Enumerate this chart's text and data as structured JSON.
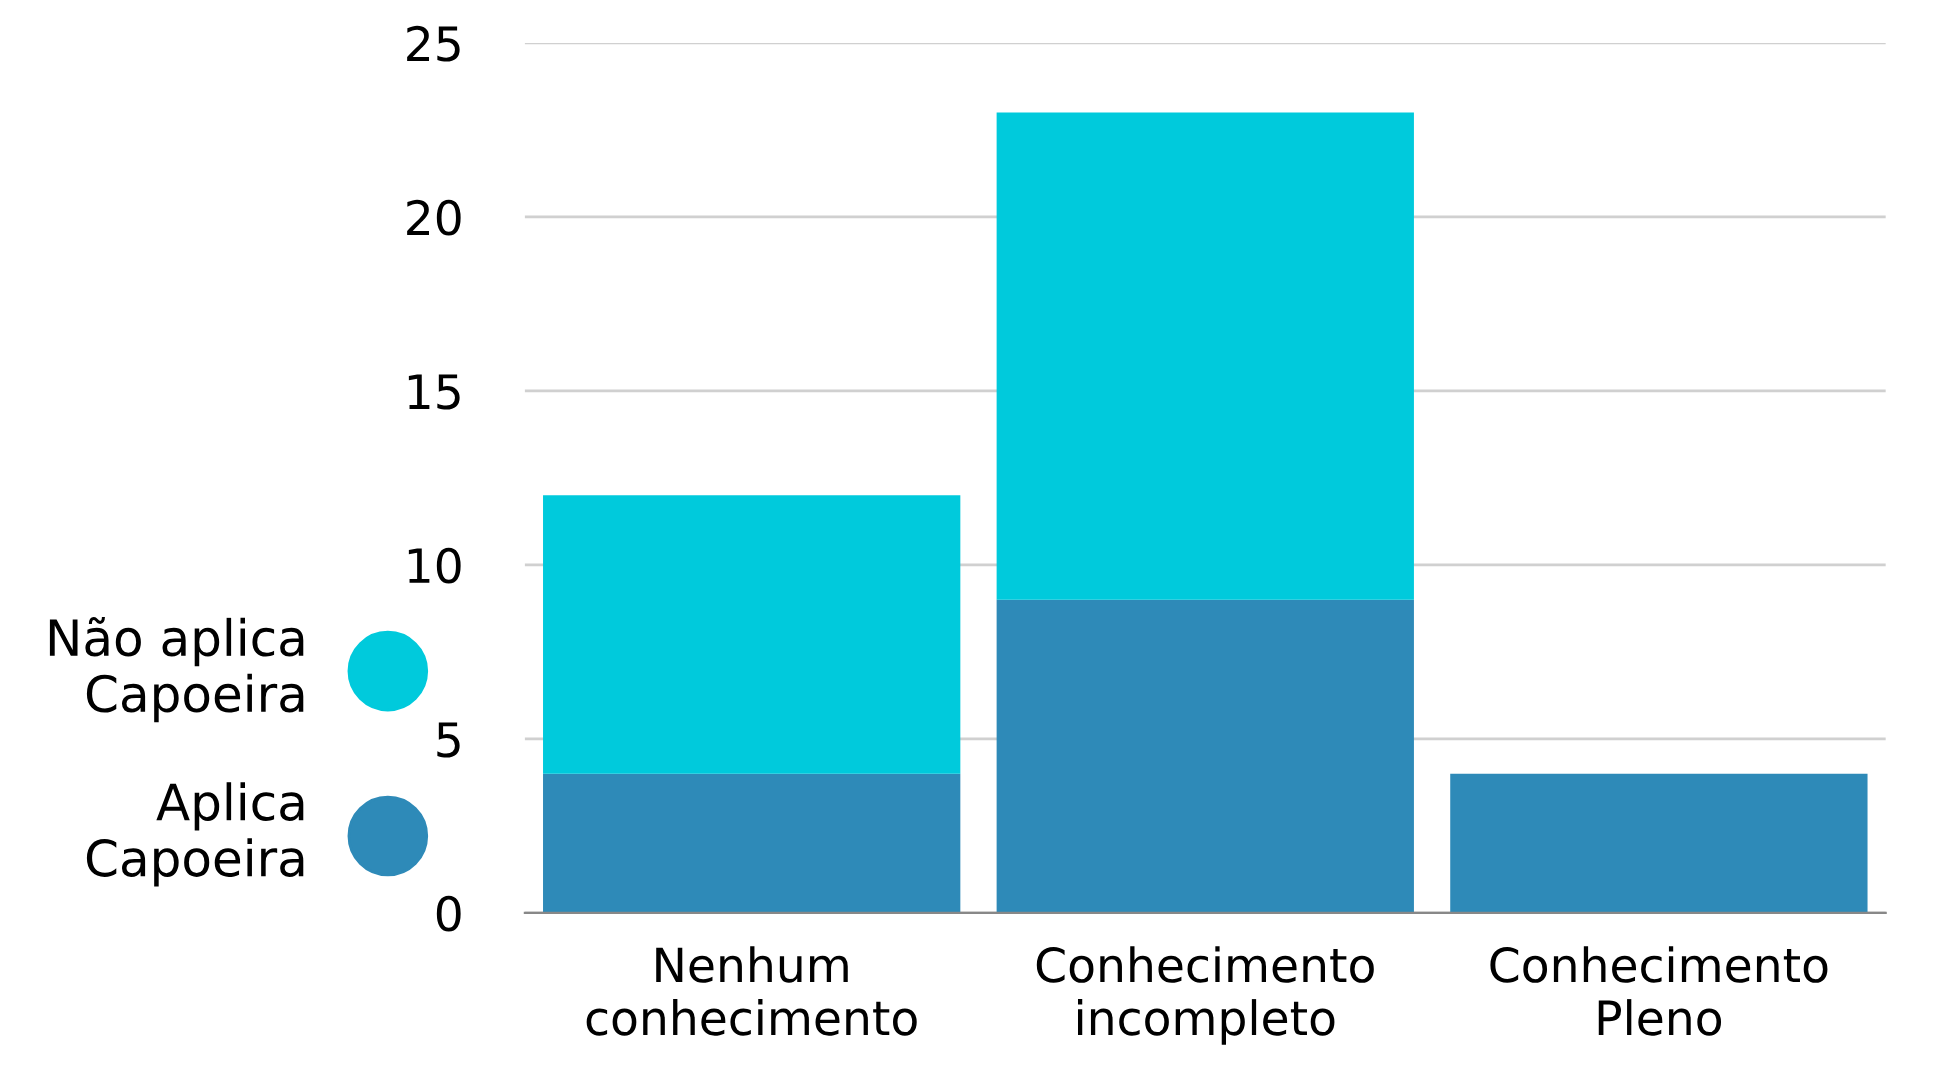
{
  "chart_data": {
    "type": "bar",
    "stacked": true,
    "categories": [
      "Nenhum\nconhecimento",
      "Conhecimento\nincompleto",
      "Conhecimento\nPleno"
    ],
    "series": [
      {
        "name": "Aplica\nCapoeira",
        "color": "#2e8ab8",
        "values": [
          4,
          9,
          4
        ]
      },
      {
        "name": "Não aplica\nCapoeira",
        "color": "#00cadc",
        "values": [
          8,
          14,
          0
        ]
      }
    ],
    "ylim": [
      0,
      25
    ],
    "yticks": [
      0,
      5,
      10,
      15,
      20,
      25
    ],
    "grid": "y",
    "legend": "left"
  }
}
